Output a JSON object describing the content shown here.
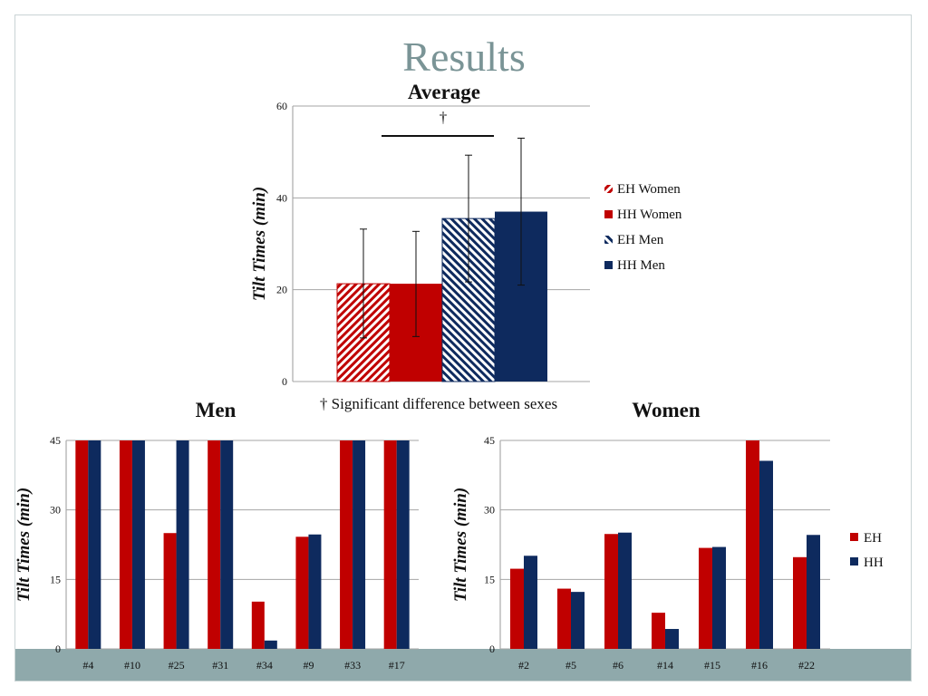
{
  "slide": {
    "title": "Results",
    "footnote": "† Significant difference between sexes",
    "dagger": "†",
    "colors": {
      "eh": "#c00000",
      "hh": "#0e2a5e",
      "band": "#8fa9ab",
      "title": "#7a9496"
    }
  },
  "chart_data": [
    {
      "id": "average",
      "type": "bar",
      "title": "Average",
      "ylabel": "Tilt Times (min)",
      "ylim": [
        0,
        60
      ],
      "yticks": [
        0,
        20,
        40,
        60
      ],
      "series": [
        {
          "name": "EH Women",
          "value": 21.3,
          "error": [
            9.5,
            33.2
          ],
          "fill": "hatch-red"
        },
        {
          "name": "HH Women",
          "value": 21.3,
          "error": [
            9.8,
            32.7
          ],
          "fill": "#c00000"
        },
        {
          "name": "EH Men",
          "value": 35.5,
          "error": [
            21.7,
            49.3
          ],
          "fill": "hatch-blue"
        },
        {
          "name": "HH Men",
          "value": 37.0,
          "error": [
            21.0,
            53.0
          ],
          "fill": "#0e2a5e"
        }
      ],
      "annotation": "† Significant difference between sexes"
    },
    {
      "id": "men",
      "type": "bar",
      "title": "Men",
      "ylabel": "Tilt Times (min)",
      "ylim": [
        0,
        45
      ],
      "yticks": [
        0,
        15,
        30,
        45
      ],
      "categories": [
        "#4",
        "#10",
        "#25",
        "#31",
        "#34",
        "#9",
        "#33",
        "#17"
      ],
      "series": [
        {
          "name": "EH",
          "values": [
            45,
            45,
            25,
            45,
            10.2,
            24.2,
            45,
            45
          ]
        },
        {
          "name": "HH",
          "values": [
            45,
            45,
            45,
            45,
            1.8,
            24.7,
            45,
            45
          ]
        }
      ]
    },
    {
      "id": "women",
      "type": "bar",
      "title": "Women",
      "ylabel": "Tilt Times (min)",
      "ylim": [
        0,
        45
      ],
      "yticks": [
        0,
        15,
        30,
        45
      ],
      "categories": [
        "#2",
        "#5",
        "#6",
        "#14",
        "#15",
        "#16",
        "#22"
      ],
      "series": [
        {
          "name": "EH",
          "values": [
            17.3,
            13.0,
            24.8,
            7.8,
            21.8,
            45,
            19.8
          ]
        },
        {
          "name": "HH",
          "values": [
            20.1,
            12.3,
            25.1,
            4.3,
            22.0,
            40.6,
            24.6
          ]
        }
      ],
      "legend": [
        "EH",
        "HH"
      ]
    }
  ]
}
